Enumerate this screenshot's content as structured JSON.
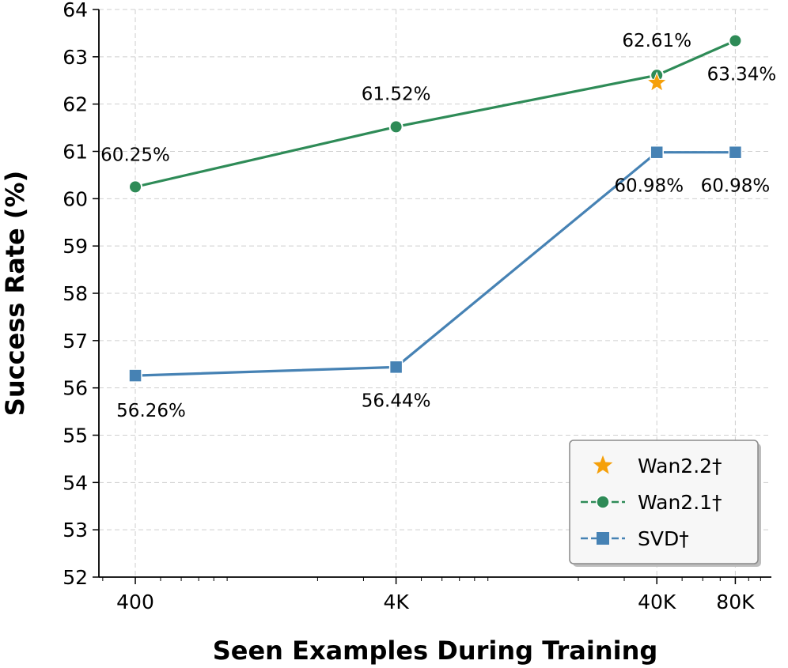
{
  "chart_data": {
    "type": "line",
    "xlabel": "Seen Examples During Training",
    "ylabel": "Success Rate (%)",
    "x_scale": "log",
    "x": [
      400,
      4000,
      40000,
      80000
    ],
    "x_tick_labels": [
      "400",
      "4K",
      "40K",
      "80K"
    ],
    "ylim": [
      52,
      64
    ],
    "y_ticks": [
      52,
      53,
      54,
      55,
      56,
      57,
      58,
      59,
      60,
      61,
      62,
      63,
      64
    ],
    "grid": true,
    "legend_position": "bottom-right",
    "series": [
      {
        "name": "Wan2.1†",
        "color": "#2e8b57",
        "marker": "circle",
        "x": [
          400,
          4000,
          40000,
          80000
        ],
        "values": [
          60.25,
          61.52,
          62.61,
          63.34
        ],
        "labels": [
          "60.25%",
          "61.52%",
          "62.61%",
          "63.34%"
        ]
      },
      {
        "name": "SVD†",
        "color": "#4682b4",
        "marker": "square",
        "x": [
          400,
          4000,
          40000,
          80000
        ],
        "values": [
          56.26,
          56.44,
          60.98,
          60.98
        ],
        "labels": [
          "56.26%",
          "56.44%",
          "60.98%",
          "60.98%"
        ]
      }
    ],
    "points": [
      {
        "name": "Wan2.2†",
        "color": "#f5a00a",
        "marker": "star",
        "x": 40000,
        "y": 62.45
      }
    ],
    "legend": [
      "Wan2.2†",
      "Wan2.1†",
      "SVD†"
    ]
  }
}
